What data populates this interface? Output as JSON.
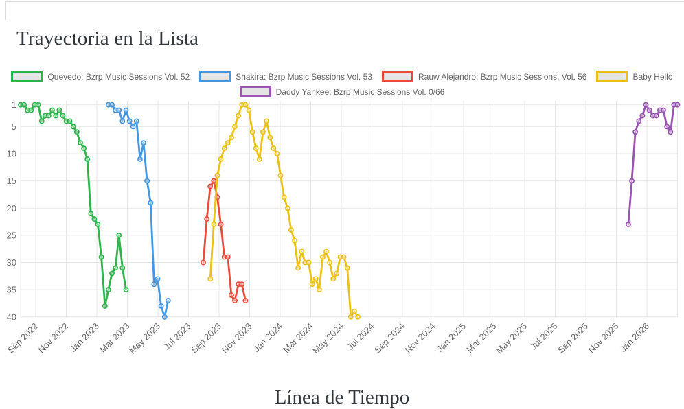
{
  "page": {
    "title": "Trayectoria en la Lista",
    "bottom_heading": "Línea de Tiempo"
  },
  "chart_data": {
    "type": "line",
    "title": "Trayectoria en la Lista",
    "legend_position": "top",
    "grid": true,
    "x_axis": {
      "tick_labels": [
        "Sep 2022",
        "Nov 2022",
        "Jan 2023",
        "Mar 2023",
        "May 2023",
        "Jul 2023",
        "Sep 2023",
        "Nov 2023",
        "Jan 2024",
        "Mar 2024",
        "May 2024",
        "Jul 2024",
        "Sep 2024",
        "Nov 2024",
        "Jan 2025",
        "Mar 2025",
        "May 2025",
        "Jul 2025",
        "Sep 2025",
        "Nov 2025",
        "Jan 2026"
      ],
      "tick_interval": "2 months",
      "point_cadence": "weekly"
    },
    "y_axis": {
      "ticks": [
        1,
        5,
        10,
        15,
        20,
        25,
        30,
        35,
        40
      ],
      "inverted": true,
      "min": 1,
      "max": 40
    },
    "legend_swatch_fill": "#e4e4e4",
    "series": [
      {
        "name": "Quevedo: Bzrp Music Sessions Vol. 52",
        "slug": "quevedo",
        "color": "#2db44b",
        "start_week": 0,
        "values": [
          1,
          1,
          2,
          2,
          1,
          1,
          4,
          3,
          3,
          2,
          3,
          2,
          3,
          4,
          4,
          5,
          6,
          8,
          9,
          11,
          21,
          22,
          23,
          29,
          38,
          35,
          32,
          31,
          25,
          31,
          35
        ]
      },
      {
        "name": "Shakira: Bzrp Music Sessions Vol. 53",
        "slug": "shakira",
        "color": "#4597e0",
        "start_week": 25,
        "values": [
          1,
          1,
          2,
          2,
          4,
          2,
          4,
          5,
          4,
          11,
          8,
          15,
          19,
          34,
          33,
          38,
          40,
          37
        ]
      },
      {
        "name": "Rauw Alejandro: Bzrp Music Sessions, Vol. 56",
        "slug": "rauw-alejandro",
        "color": "#e74c3c",
        "start_week": 52,
        "values": [
          30,
          22,
          16,
          15,
          18,
          23,
          29,
          29,
          36,
          37,
          34,
          34,
          37
        ]
      },
      {
        "name": "Baby Hello",
        "slug": "baby-hello",
        "color": "#ecc117",
        "start_week": 54,
        "values": [
          33,
          23,
          14,
          11,
          9,
          8,
          7,
          5,
          3,
          1,
          1,
          2,
          6,
          9,
          11,
          6,
          4,
          7,
          9,
          10,
          14,
          18,
          20,
          24,
          26,
          31,
          28,
          30,
          30,
          34,
          33,
          35,
          29,
          28,
          30,
          33,
          32,
          29,
          29,
          31,
          40,
          39,
          40
        ]
      },
      {
        "name": "Daddy Yankee: Bzrp Music Sessions Vol. 0/66",
        "slug": "daddy-yankee",
        "color": "#9a55b2",
        "start_week": 173,
        "values": [
          23,
          15,
          6,
          4,
          3,
          1,
          2,
          3,
          3,
          2,
          2,
          5,
          6,
          1,
          1
        ]
      }
    ]
  }
}
